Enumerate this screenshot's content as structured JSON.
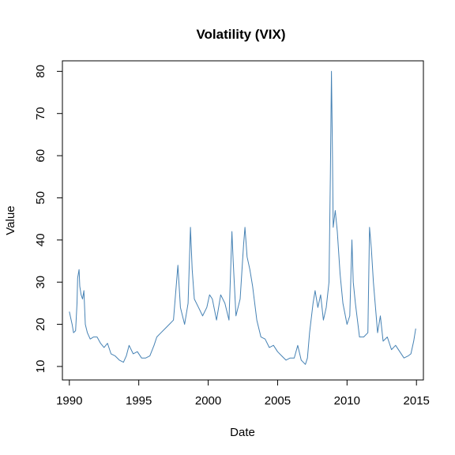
{
  "chart_data": {
    "type": "line",
    "title": "Volatility (VIX)",
    "xlabel": "Date",
    "ylabel": "Value",
    "xlim": [
      1989.5,
      2015.5
    ],
    "ylim": [
      6.8,
      82.5
    ],
    "x_ticks": [
      1990,
      1995,
      2000,
      2005,
      2010,
      2015
    ],
    "y_ticks": [
      10,
      20,
      30,
      40,
      50,
      60,
      70,
      80
    ],
    "x_tick_labels": [
      "1990",
      "1995",
      "2000",
      "2005",
      "2010",
      "2015"
    ],
    "y_tick_labels": [
      "10",
      "20",
      "30",
      "40",
      "50",
      "60",
      "70",
      "80"
    ],
    "grid": false,
    "line_color": "#4682B4",
    "series": [
      {
        "x": [
          1990.0,
          1990.1,
          1990.2,
          1990.3,
          1990.45,
          1990.55,
          1990.6,
          1990.7,
          1990.75,
          1990.85,
          1990.95,
          1991.05,
          1991.15,
          1991.3,
          1991.5,
          1991.75,
          1992.0,
          1992.25,
          1992.5,
          1992.75,
          1993.0,
          1993.3,
          1993.6,
          1993.9,
          1994.1,
          1994.3,
          1994.6,
          1994.9,
          1995.2,
          1995.5,
          1995.8,
          1996.1,
          1996.3,
          1996.6,
          1996.9,
          1997.2,
          1997.5,
          1997.82,
          1998.0,
          1998.3,
          1998.55,
          1998.72,
          1998.85,
          1999.0,
          1999.3,
          1999.6,
          1999.9,
          2000.1,
          2000.3,
          2000.6,
          2000.9,
          2001.2,
          2001.5,
          2001.71,
          2001.8,
          2002.0,
          2002.3,
          2002.55,
          2002.65,
          2002.8,
          2003.0,
          2003.2,
          2003.5,
          2003.8,
          2004.1,
          2004.4,
          2004.7,
          2005.0,
          2005.3,
          2005.6,
          2005.9,
          2006.2,
          2006.45,
          2006.7,
          2007.0,
          2007.15,
          2007.3,
          2007.55,
          2007.7,
          2007.9,
          2008.1,
          2008.3,
          2008.5,
          2008.7,
          2008.8,
          2008.88,
          2008.95,
          2009.0,
          2009.15,
          2009.3,
          2009.5,
          2009.7,
          2010.0,
          2010.2,
          2010.35,
          2010.45,
          2010.6,
          2010.9,
          2011.2,
          2011.5,
          2011.62,
          2011.75,
          2011.9,
          2012.2,
          2012.4,
          2012.6,
          2012.9,
          2013.2,
          2013.5,
          2013.8,
          2014.1,
          2014.4,
          2014.6,
          2014.8,
          2014.95
        ],
        "values": [
          23.0,
          21.5,
          20.0,
          18.0,
          18.5,
          25.0,
          31.0,
          33.0,
          29.0,
          27.0,
          26.0,
          28.0,
          20.0,
          18.0,
          16.5,
          17.0,
          17.0,
          15.5,
          14.5,
          15.5,
          13.0,
          12.5,
          11.5,
          11.0,
          12.5,
          15.0,
          13.0,
          13.5,
          12.0,
          12.0,
          12.5,
          15.0,
          17.0,
          18.0,
          19.0,
          20.0,
          21.0,
          34.0,
          24.0,
          20.0,
          25.0,
          43.0,
          33.0,
          26.0,
          24.0,
          22.0,
          24.0,
          27.0,
          26.0,
          21.0,
          27.0,
          25.0,
          21.0,
          42.0,
          35.0,
          22.0,
          26.0,
          39.0,
          43.0,
          36.0,
          33.0,
          29.0,
          21.0,
          17.0,
          16.5,
          14.5,
          15.0,
          13.5,
          12.5,
          11.5,
          12.0,
          12.0,
          15.0,
          11.5,
          10.5,
          12.0,
          18.0,
          25.0,
          28.0,
          24.0,
          27.0,
          21.0,
          24.0,
          30.0,
          55.0,
          80.0,
          60.0,
          43.0,
          47.0,
          42.0,
          32.0,
          25.0,
          20.0,
          22.0,
          40.0,
          30.0,
          25.0,
          17.0,
          17.0,
          18.0,
          43.0,
          38.0,
          30.0,
          18.0,
          22.0,
          16.0,
          17.0,
          14.0,
          15.0,
          13.5,
          12.0,
          12.5,
          13.0,
          16.0,
          19.0
        ]
      }
    ]
  }
}
